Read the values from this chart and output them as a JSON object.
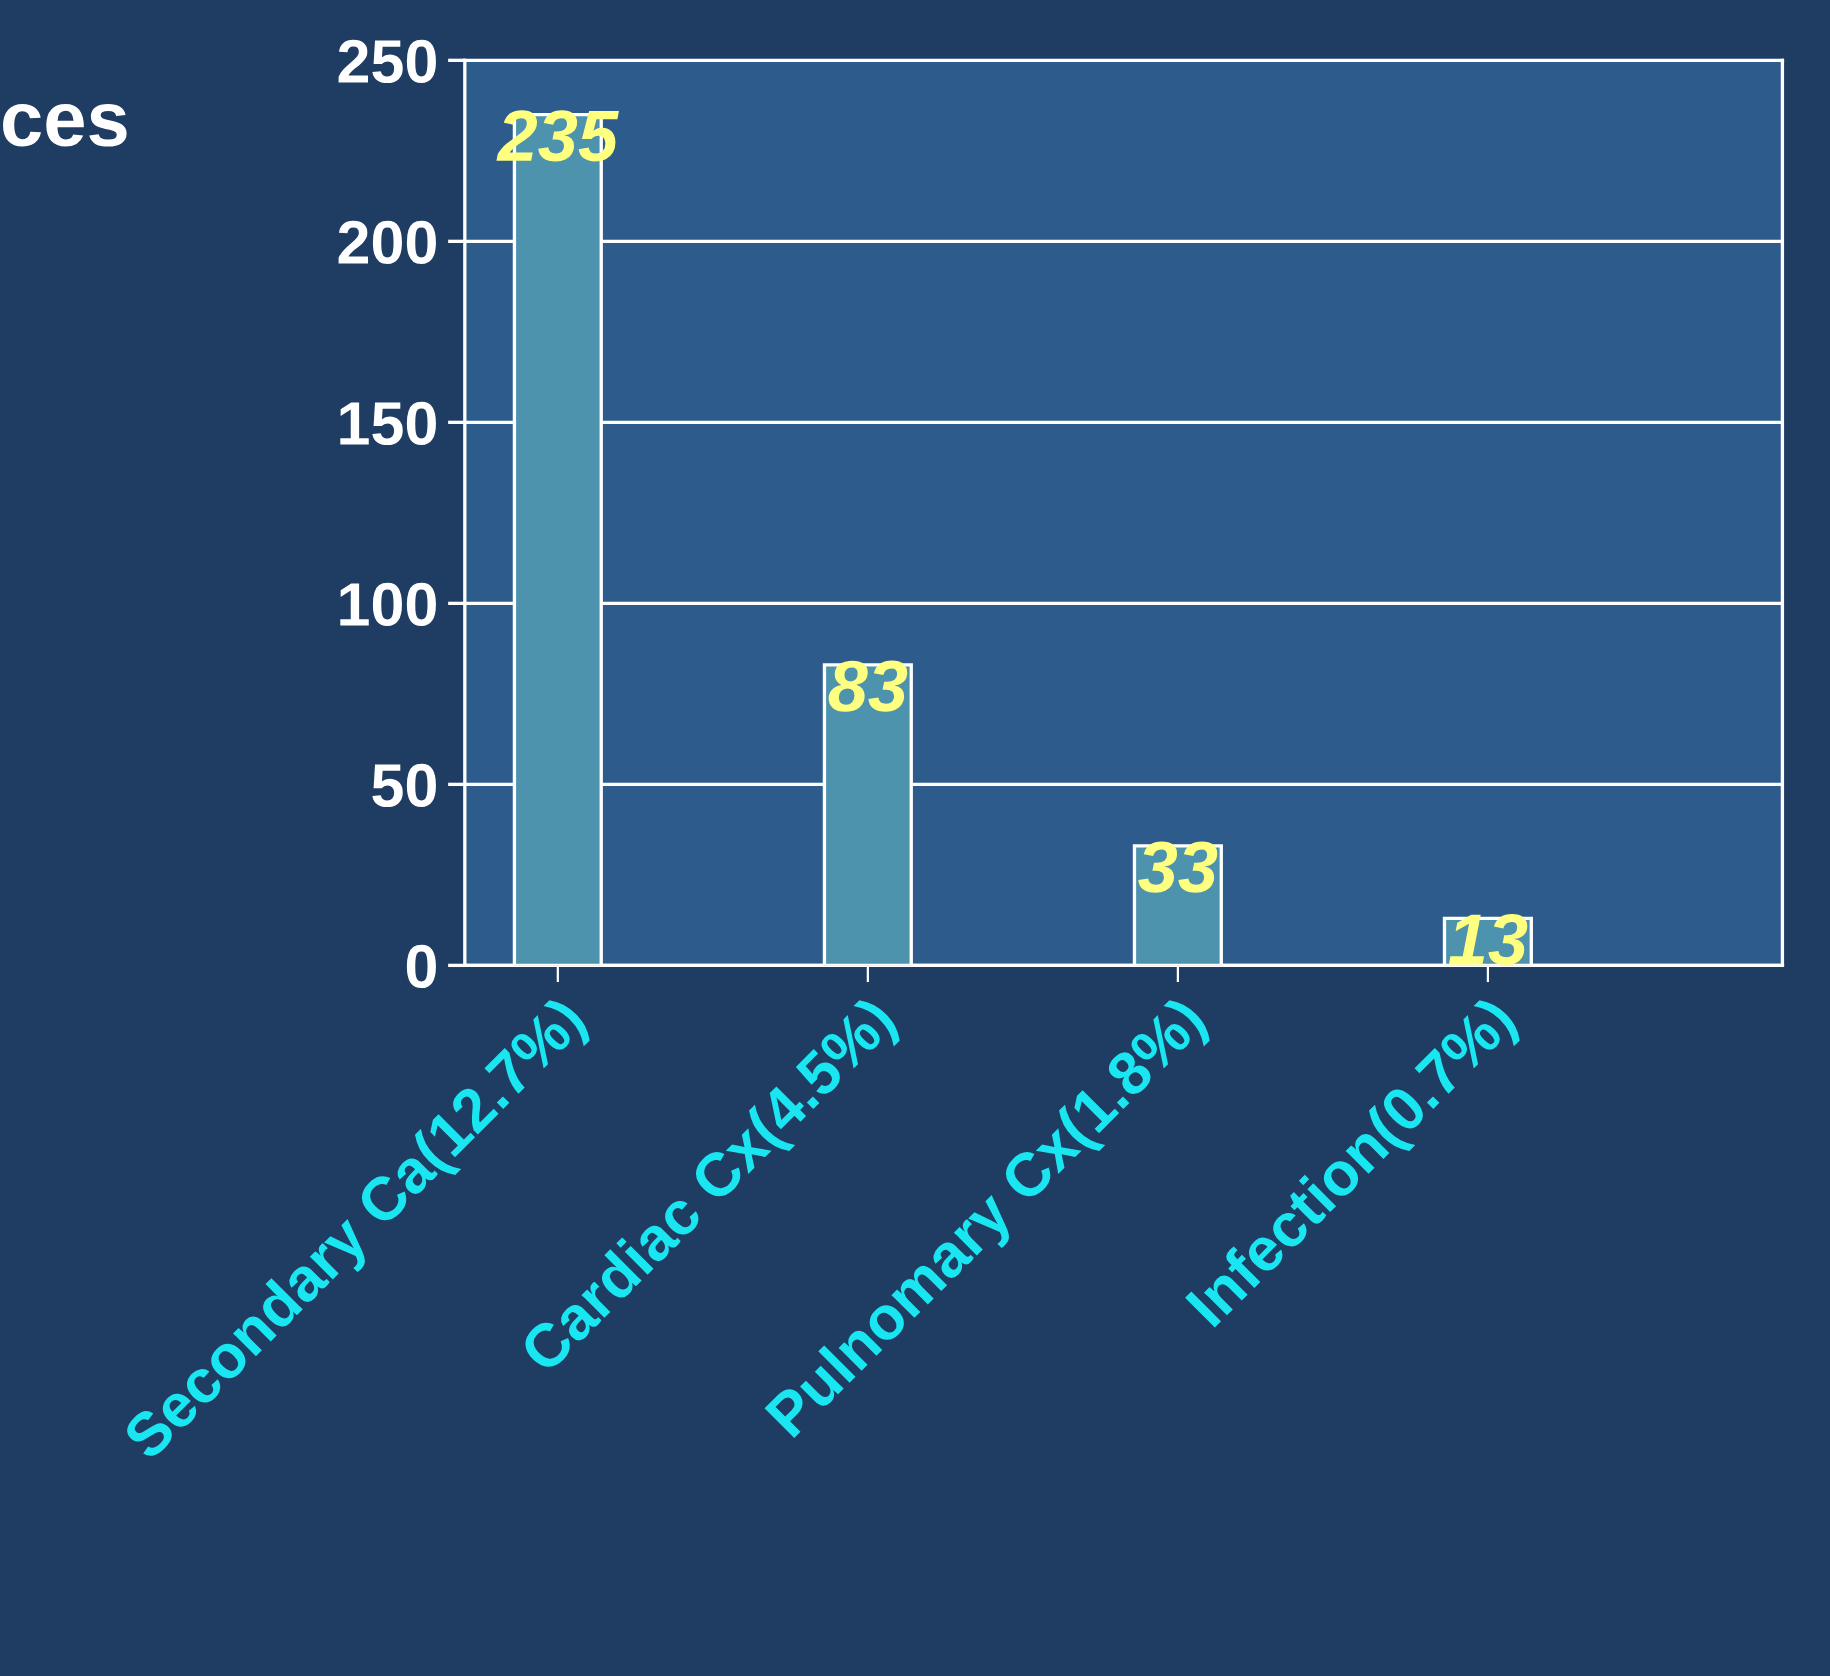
{
  "chart_data": {
    "type": "bar",
    "title": "ces",
    "categories": [
      "Secondary Ca(12.7%)",
      "Cardiac Cx(4.5%)",
      "Pulnomary Cx(1.8%)",
      "Infection(0.7%)"
    ],
    "values": [
      235,
      83,
      33,
      13
    ],
    "color": "#4d93ad",
    "ylim": [
      0,
      250
    ],
    "yticks": [
      0,
      50,
      100,
      150,
      200,
      250
    ],
    "grid": "y",
    "data_labels": true
  }
}
